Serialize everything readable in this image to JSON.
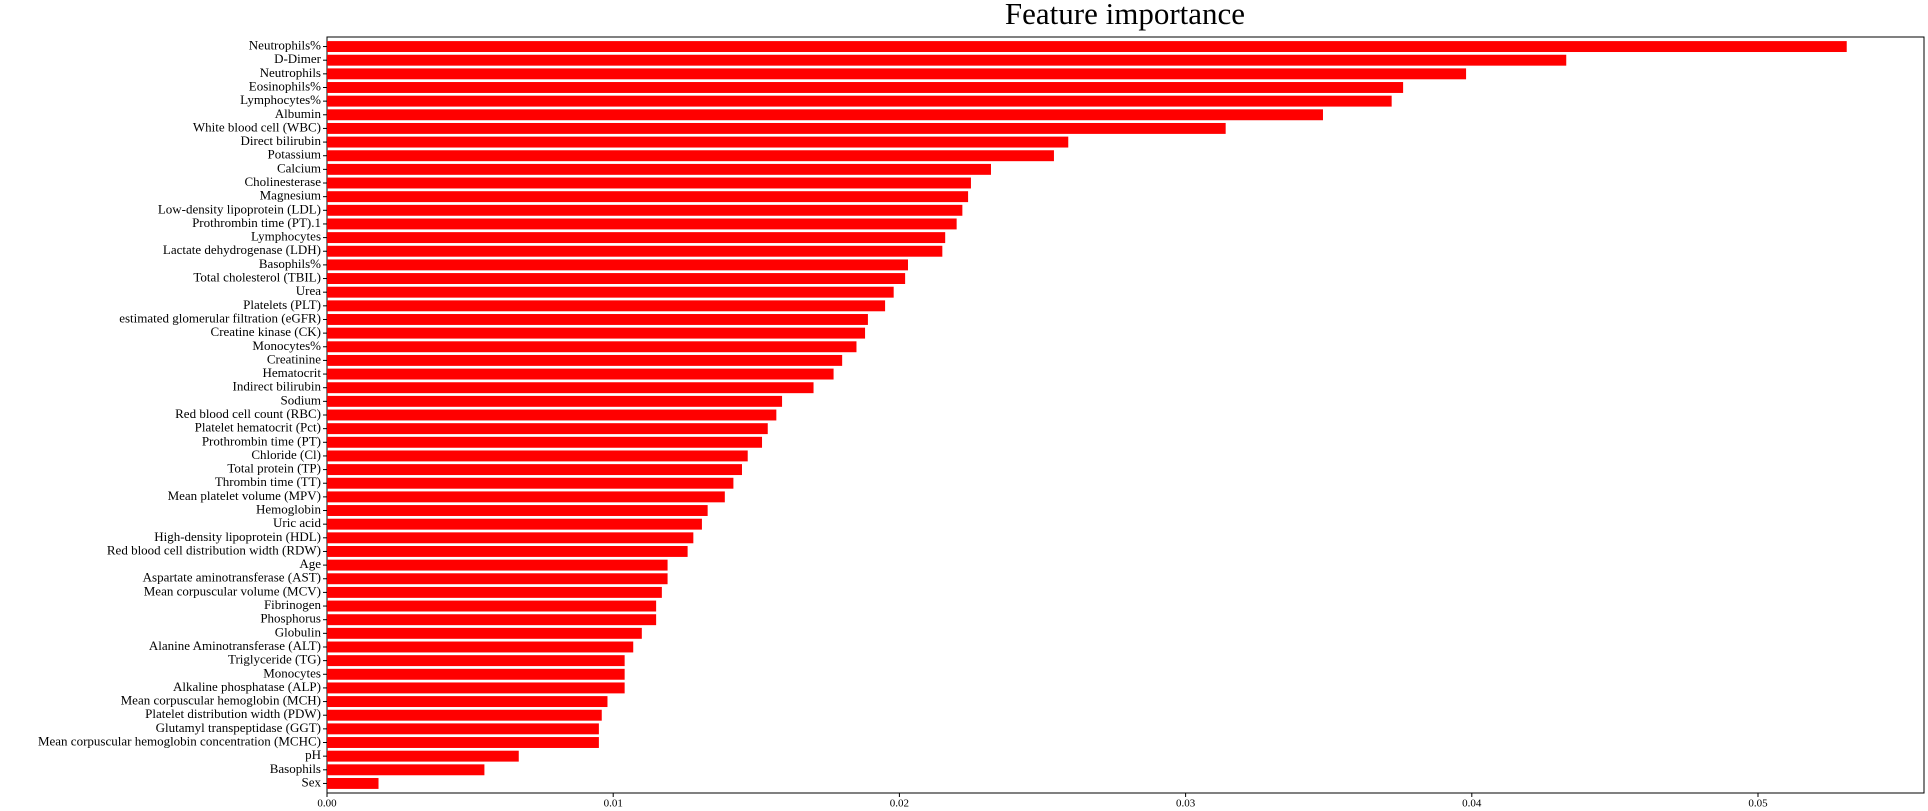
{
  "chart_data": {
    "type": "barh",
    "title": "Feature importance",
    "color": "#ff0000",
    "categories": [
      "Neutrophils%",
      "D-Dimer",
      "Neutrophils",
      "Eosinophils%",
      "Lymphocytes%",
      "Albumin",
      "White blood cell (WBC)",
      "Direct bilirubin",
      "Potassium",
      "Calcium",
      "Cholinesterase",
      "Magnesium",
      "Low-density lipoprotein (LDL)",
      "Prothrombin time (PT).1",
      "Lymphocytes",
      "Lactate dehydrogenase (LDH)",
      "Basophils%",
      "Total cholesterol (TBIL)",
      "Urea",
      "Platelets (PLT)",
      "estimated glomerular filtration (eGFR)",
      "Creatine kinase (CK)",
      "Monocytes%",
      "Creatinine",
      "Hematocrit",
      "Indirect bilirubin",
      "Sodium",
      "Red blood cell count (RBC)",
      "Platelet hematocrit (Pct)",
      "Prothrombin time (PT)",
      "Chloride (Cl)",
      "Total protein (TP)",
      "Thrombin time (TT)",
      "Mean platelet volume (MPV)",
      "Hemoglobin",
      "Uric acid",
      "High-density lipoprotein (HDL)",
      "Red blood cell distribution width (RDW)",
      "Age",
      "Aspartate aminotransferase (AST)",
      "Mean corpuscular volume (MCV)",
      "Fibrinogen",
      "Phosphorus",
      "Globulin",
      "Alanine Aminotransferase (ALT)",
      "Triglyceride (TG)",
      "Monocytes",
      "Alkaline phosphatase (ALP)",
      "Mean corpuscular hemoglobin (MCH)",
      "Platelet distribution width (PDW)",
      "Glutamyl transpeptidase (GGT)",
      "Mean corpuscular hemoglobin concentration (MCHC)",
      "pH",
      "Basophils",
      "Sex"
    ],
    "values": [
      0.0531,
      0.0433,
      0.0398,
      0.0376,
      0.0372,
      0.0348,
      0.0314,
      0.0259,
      0.0254,
      0.0232,
      0.0225,
      0.0224,
      0.0222,
      0.022,
      0.0216,
      0.0215,
      0.0203,
      0.0202,
      0.0198,
      0.0195,
      0.0189,
      0.0188,
      0.0185,
      0.018,
      0.0177,
      0.017,
      0.0159,
      0.0157,
      0.0154,
      0.0152,
      0.0147,
      0.0145,
      0.0142,
      0.0139,
      0.0133,
      0.0131,
      0.0128,
      0.0126,
      0.0119,
      0.0119,
      0.0117,
      0.0115,
      0.0115,
      0.011,
      0.0107,
      0.0104,
      0.0104,
      0.0104,
      0.0098,
      0.0096,
      0.0095,
      0.0095,
      0.0067,
      0.0055,
      0.0018
    ],
    "xlim": [
      0,
      0.0558
    ],
    "xticks": [
      {
        "value": 0,
        "label": "0.00"
      },
      0.01,
      0.02,
      0.03,
      0.04,
      0.05
    ]
  }
}
